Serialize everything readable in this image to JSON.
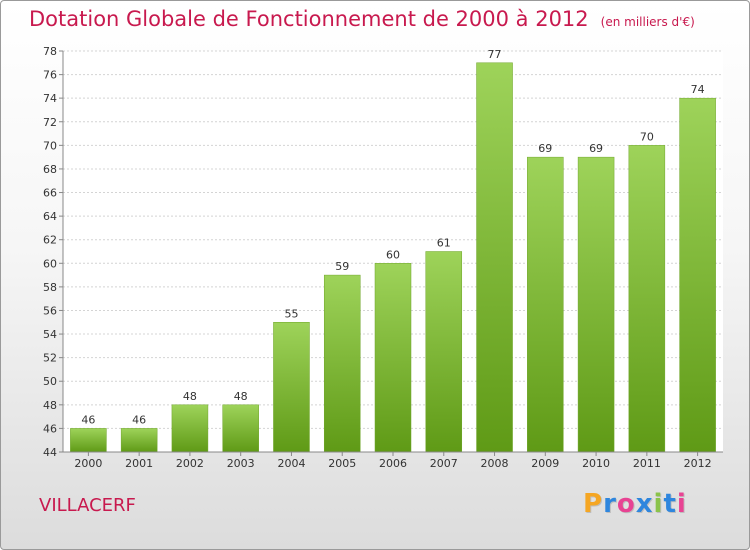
{
  "title": "Dotation Globale de Fonctionnement de 2000 à 2012",
  "subtitle": "(en milliers d'€)",
  "commune": "VILLACERF",
  "logo": {
    "letters": [
      "P",
      "r",
      "o",
      "x",
      "i",
      "t",
      "i"
    ],
    "colors": [
      "#f5a623",
      "#2e86de",
      "#e84393",
      "#2e86de",
      "#8bc34a",
      "#2e86de",
      "#e84393"
    ]
  },
  "chart_data": {
    "type": "bar",
    "categories": [
      "2000",
      "2001",
      "2002",
      "2003",
      "2004",
      "2005",
      "2006",
      "2007",
      "2008",
      "2009",
      "2010",
      "2011",
      "2012"
    ],
    "values": [
      46,
      46,
      48,
      48,
      55,
      59,
      60,
      61,
      77,
      69,
      69,
      70,
      74
    ],
    "data_labels": [
      "46",
      "46",
      "48",
      "48",
      "55",
      "59",
      "60",
      "61",
      "77",
      "69",
      "69",
      "70",
      "74"
    ],
    "title": "Dotation Globale de Fonctionnement de 2000 à 2012",
    "subtitle": "(en milliers d'€)",
    "xlabel": "",
    "ylabel": "",
    "ylim": [
      44,
      78
    ],
    "yticks": [
      44,
      46,
      48,
      50,
      52,
      54,
      56,
      58,
      60,
      62,
      64,
      66,
      68,
      70,
      72,
      74,
      76,
      78
    ],
    "grid": true,
    "bar_color": "#8cc63f"
  }
}
